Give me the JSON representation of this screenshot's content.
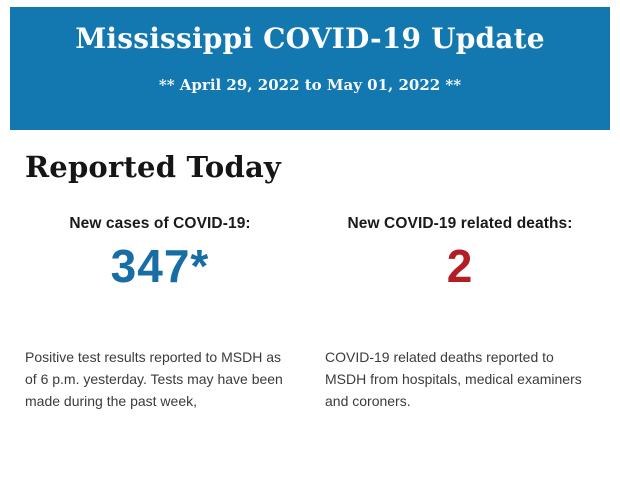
{
  "header": {
    "title": "Mississippi COVID-19 Update",
    "date_range": "** April 29, 2022 to May 01, 2022 **"
  },
  "section": {
    "heading": "Reported Today"
  },
  "stats": {
    "cases": {
      "label": "New cases of COVID-19:",
      "value": "347*",
      "description": "Positive test results reported to MSDH as of 6 p.m. yesterday. Tests may have been made during the past week,"
    },
    "deaths": {
      "label": "New COVID-19 related deaths:",
      "value": "2",
      "description": "COVID-19 related deaths reported to MSDH from hospitals, medical examiners and coroners."
    }
  },
  "colors": {
    "banner_blue": "#1377b0",
    "cases_blue": "#176da4",
    "deaths_red": "#b21e24",
    "heading_text": "#151515",
    "body_text": "#3b3b3b"
  }
}
